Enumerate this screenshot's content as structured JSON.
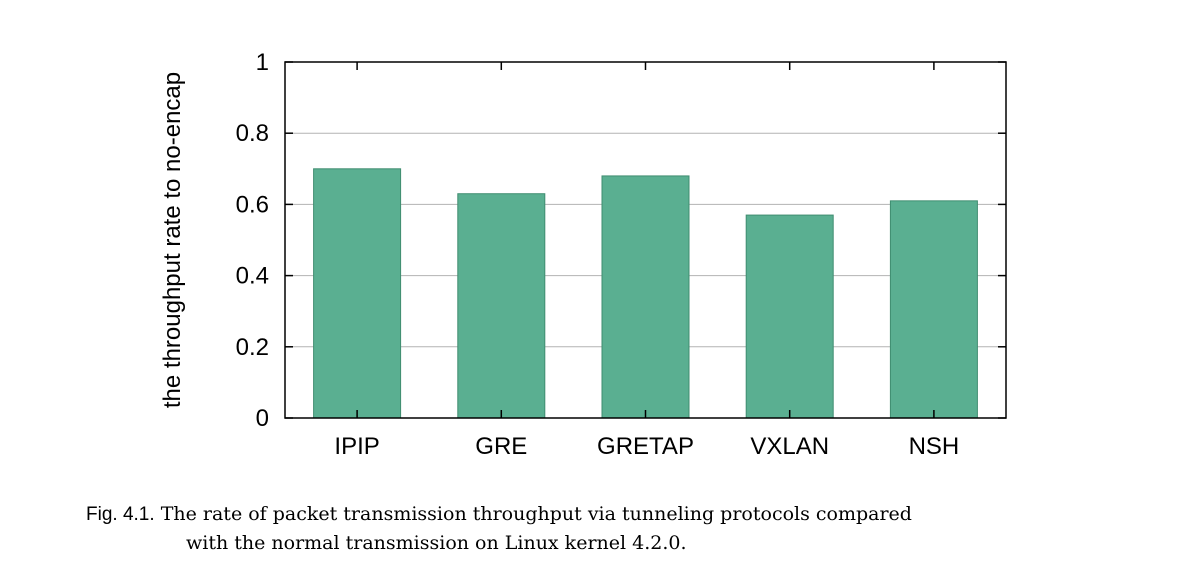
{
  "chart_data": {
    "type": "bar",
    "categories": [
      "IPIP",
      "GRE",
      "GRETAP",
      "VXLAN",
      "NSH"
    ],
    "values": [
      0.7,
      0.63,
      0.68,
      0.57,
      0.61
    ],
    "title": "",
    "xlabel": "",
    "ylabel": "the throughput rate to no-encap",
    "ylim": [
      0,
      1
    ],
    "yticks": [
      "0",
      "0.2",
      "0.4",
      "0.6",
      "0.8",
      "1"
    ],
    "grid": true,
    "bar_color": "#5aaf91",
    "bar_edge_color": "#3f8d70"
  },
  "caption": {
    "number": "Fig. 4.1.",
    "line1": "The rate of packet transmission throughput via tunneling protocols compared",
    "line2": "with the normal transmission on Linux kernel 4.2.0."
  }
}
